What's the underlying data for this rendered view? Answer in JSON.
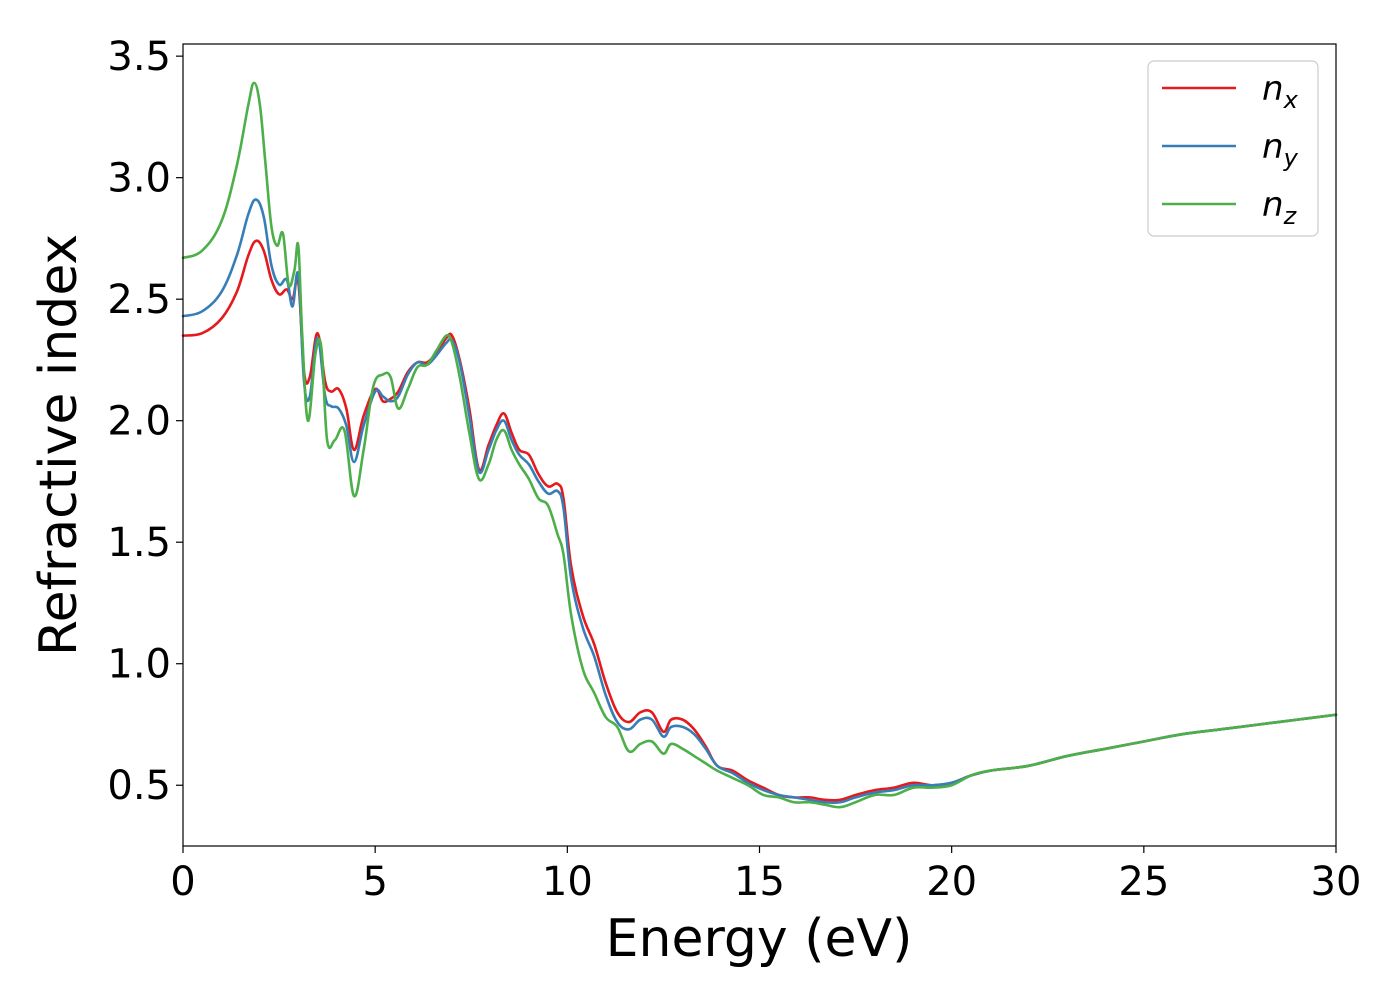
{
  "chart_data": {
    "type": "line",
    "title": "",
    "xlabel": "Energy (eV)",
    "ylabel": "Refractive index",
    "xlim": [
      0,
      30
    ],
    "ylim": [
      0.25,
      3.55
    ],
    "xticks": [
      0,
      5,
      10,
      15,
      20,
      25,
      30
    ],
    "xtick_labels": [
      "0",
      "5",
      "10",
      "15",
      "20",
      "25",
      "30"
    ],
    "yticks": [
      0.5,
      1.0,
      1.5,
      2.0,
      2.5,
      3.0,
      3.5
    ],
    "ytick_labels": [
      "0.5",
      "1.0",
      "1.5",
      "2.0",
      "2.5",
      "3.0",
      "3.5"
    ],
    "grid": false,
    "legend_position": "top-right",
    "series": [
      {
        "name": "n",
        "subscript": "x",
        "color": "#e41a1c",
        "x": [
          0,
          0.5,
          1.0,
          1.4,
          1.7,
          1.9,
          2.1,
          2.3,
          2.5,
          2.7,
          2.85,
          3.0,
          3.15,
          3.3,
          3.5,
          3.7,
          3.85,
          4.05,
          4.25,
          4.45,
          4.7,
          5.0,
          5.2,
          5.4,
          5.6,
          5.85,
          6.1,
          6.35,
          6.6,
          6.85,
          7.0,
          7.2,
          7.45,
          7.7,
          7.95,
          8.15,
          8.35,
          8.55,
          8.75,
          9.0,
          9.25,
          9.5,
          9.75,
          9.9,
          10.1,
          10.4,
          10.7,
          11.0,
          11.3,
          11.6,
          11.9,
          12.2,
          12.5,
          12.7,
          13.0,
          13.3,
          13.6,
          13.9,
          14.3,
          14.7,
          15.1,
          15.5,
          15.9,
          16.3,
          16.7,
          17.1,
          17.5,
          18.0,
          18.5,
          19.0,
          19.5,
          20.0,
          20.5,
          21.0,
          22.0,
          23.0,
          24.0,
          25.0,
          26.0,
          27.0,
          28.0,
          29.0,
          30.0
        ],
        "y": [
          2.35,
          2.36,
          2.42,
          2.53,
          2.68,
          2.74,
          2.7,
          2.58,
          2.52,
          2.54,
          2.5,
          2.57,
          2.2,
          2.18,
          2.36,
          2.16,
          2.12,
          2.13,
          2.05,
          1.88,
          2.02,
          2.13,
          2.08,
          2.09,
          2.12,
          2.2,
          2.24,
          2.24,
          2.28,
          2.34,
          2.35,
          2.25,
          2.05,
          1.8,
          1.9,
          1.98,
          2.03,
          1.95,
          1.88,
          1.86,
          1.78,
          1.73,
          1.74,
          1.68,
          1.4,
          1.2,
          1.08,
          0.92,
          0.8,
          0.76,
          0.8,
          0.8,
          0.72,
          0.77,
          0.77,
          0.73,
          0.66,
          0.58,
          0.56,
          0.52,
          0.49,
          0.46,
          0.45,
          0.45,
          0.44,
          0.44,
          0.46,
          0.48,
          0.49,
          0.51,
          0.5,
          0.51,
          0.54,
          0.56,
          0.58,
          0.62,
          0.65,
          0.68,
          0.71,
          0.73,
          0.75,
          0.77,
          0.79
        ]
      },
      {
        "name": "n",
        "subscript": "y",
        "color": "#377eb8",
        "x": [
          0,
          0.5,
          1.0,
          1.4,
          1.7,
          1.9,
          2.1,
          2.3,
          2.5,
          2.7,
          2.85,
          3.0,
          3.15,
          3.3,
          3.5,
          3.7,
          3.85,
          4.05,
          4.25,
          4.45,
          4.7,
          5.0,
          5.2,
          5.4,
          5.6,
          5.85,
          6.1,
          6.35,
          6.6,
          6.85,
          7.0,
          7.2,
          7.45,
          7.7,
          7.95,
          8.15,
          8.35,
          8.55,
          8.75,
          9.0,
          9.25,
          9.5,
          9.75,
          9.9,
          10.1,
          10.4,
          10.7,
          11.0,
          11.3,
          11.6,
          11.9,
          12.2,
          12.5,
          12.7,
          13.0,
          13.3,
          13.6,
          13.9,
          14.3,
          14.7,
          15.1,
          15.5,
          15.9,
          16.3,
          16.7,
          17.1,
          17.5,
          18.0,
          18.5,
          19.0,
          19.5,
          20.0,
          20.5,
          21.0,
          22.0,
          23.0,
          24.0,
          25.0,
          26.0,
          27.0,
          28.0,
          29.0,
          30.0
        ],
        "y": [
          2.43,
          2.45,
          2.53,
          2.68,
          2.85,
          2.91,
          2.84,
          2.64,
          2.56,
          2.58,
          2.47,
          2.6,
          2.16,
          2.1,
          2.34,
          2.1,
          2.06,
          2.05,
          1.98,
          1.83,
          1.98,
          2.12,
          2.1,
          2.08,
          2.1,
          2.19,
          2.24,
          2.23,
          2.27,
          2.32,
          2.33,
          2.24,
          2.02,
          1.79,
          1.88,
          1.96,
          2.0,
          1.92,
          1.86,
          1.82,
          1.75,
          1.7,
          1.71,
          1.64,
          1.35,
          1.15,
          1.03,
          0.87,
          0.76,
          0.73,
          0.77,
          0.77,
          0.7,
          0.74,
          0.74,
          0.71,
          0.65,
          0.58,
          0.55,
          0.51,
          0.48,
          0.46,
          0.45,
          0.44,
          0.43,
          0.43,
          0.45,
          0.47,
          0.48,
          0.5,
          0.5,
          0.51,
          0.54,
          0.56,
          0.58,
          0.62,
          0.65,
          0.68,
          0.71,
          0.73,
          0.75,
          0.77,
          0.79
        ]
      },
      {
        "name": "n",
        "subscript": "z",
        "color": "#4daf4a",
        "x": [
          0,
          0.5,
          1.0,
          1.4,
          1.7,
          1.85,
          2.0,
          2.15,
          2.3,
          2.45,
          2.6,
          2.75,
          2.9,
          3.0,
          3.1,
          3.25,
          3.45,
          3.6,
          3.75,
          3.95,
          4.2,
          4.45,
          4.7,
          4.95,
          5.2,
          5.4,
          5.6,
          5.85,
          6.1,
          6.35,
          6.6,
          6.85,
          7.0,
          7.2,
          7.45,
          7.7,
          7.95,
          8.15,
          8.35,
          8.55,
          8.75,
          9.0,
          9.25,
          9.5,
          9.75,
          9.9,
          10.1,
          10.4,
          10.7,
          11.0,
          11.3,
          11.6,
          11.9,
          12.2,
          12.5,
          12.7,
          13.0,
          13.3,
          13.6,
          13.9,
          14.3,
          14.7,
          15.1,
          15.5,
          15.9,
          16.3,
          16.7,
          17.1,
          17.5,
          18.0,
          18.5,
          19.0,
          19.5,
          20.0,
          20.5,
          21.0,
          22.0,
          23.0,
          24.0,
          25.0,
          26.0,
          27.0,
          28.0,
          29.0,
          30.0
        ],
        "y": [
          2.67,
          2.7,
          2.82,
          3.05,
          3.3,
          3.39,
          3.3,
          3.05,
          2.8,
          2.72,
          2.77,
          2.56,
          2.62,
          2.72,
          2.36,
          2.0,
          2.28,
          2.3,
          1.92,
          1.92,
          1.96,
          1.69,
          1.88,
          2.14,
          2.19,
          2.18,
          2.05,
          2.13,
          2.22,
          2.23,
          2.29,
          2.35,
          2.32,
          2.18,
          1.95,
          1.76,
          1.82,
          1.92,
          1.96,
          1.88,
          1.82,
          1.76,
          1.68,
          1.65,
          1.53,
          1.45,
          1.2,
          0.98,
          0.88,
          0.78,
          0.74,
          0.64,
          0.67,
          0.68,
          0.63,
          0.67,
          0.65,
          0.62,
          0.59,
          0.56,
          0.53,
          0.5,
          0.46,
          0.45,
          0.43,
          0.43,
          0.42,
          0.41,
          0.43,
          0.46,
          0.46,
          0.49,
          0.49,
          0.5,
          0.54,
          0.56,
          0.58,
          0.62,
          0.65,
          0.68,
          0.71,
          0.73,
          0.75,
          0.77,
          0.79
        ]
      }
    ]
  }
}
